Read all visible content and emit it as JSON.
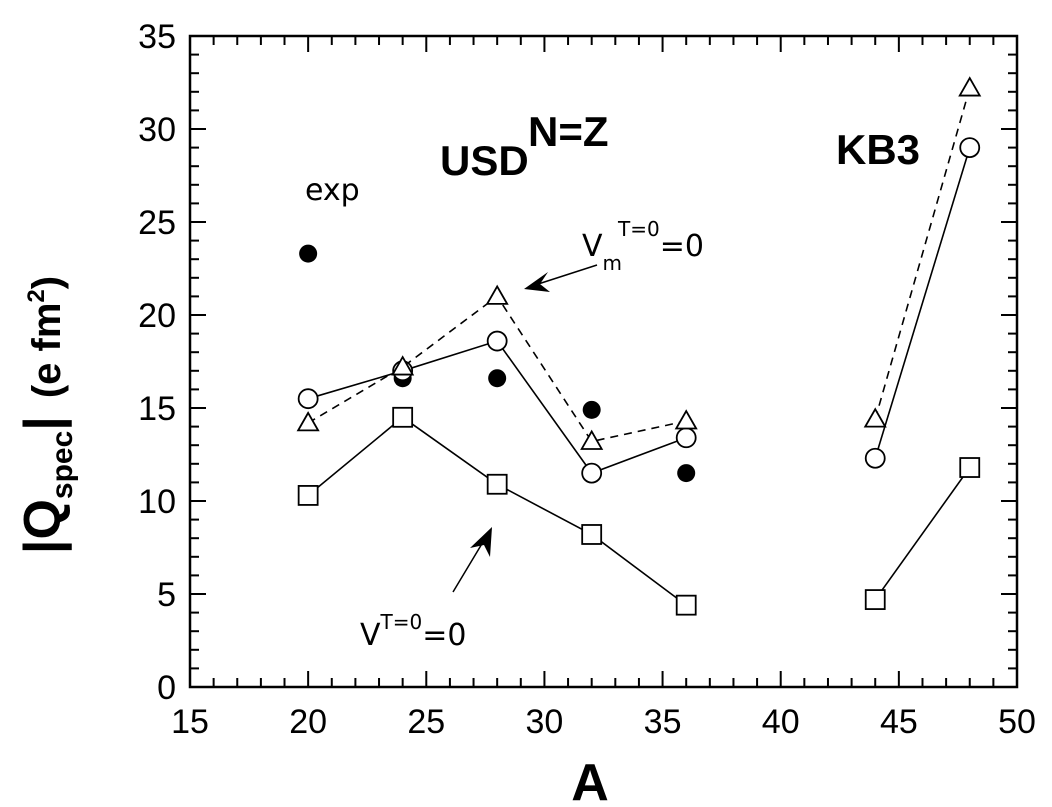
{
  "chart_data": {
    "type": "scatter",
    "xlabel": "A",
    "ylabel": "|Q_spec| (e fm²)",
    "ylabel_parts": {
      "bar_q": "|Q",
      "sub": "spec",
      "bar": "|",
      "unit_open": "(e  fm",
      "sup": "2",
      "unit_close": ")"
    },
    "xlim": [
      15,
      50
    ],
    "ylim": [
      0,
      35
    ],
    "xticks": [
      15,
      20,
      25,
      30,
      35,
      40,
      45,
      50
    ],
    "yticks": [
      0,
      5,
      10,
      15,
      20,
      25,
      30,
      35
    ],
    "grid": false,
    "series": [
      {
        "marker": "filled-circle",
        "line": "none",
        "points": [
          [
            20,
            23.3
          ],
          [
            24,
            16.6
          ],
          [
            28,
            16.6
          ],
          [
            32,
            14.9
          ],
          [
            36,
            11.5
          ]
        ]
      },
      {
        "marker": "open-circle",
        "line": "solid",
        "segments": [
          [
            [
              20,
              15.5
            ],
            [
              24,
              17.0
            ],
            [
              28,
              18.6
            ],
            [
              32,
              11.5
            ],
            [
              36,
              13.4
            ]
          ],
          [
            [
              44,
              12.3
            ],
            [
              48,
              29.0
            ]
          ]
        ]
      },
      {
        "marker": "open-triangle",
        "line": "dashed",
        "segments": [
          [
            [
              20,
              14.2
            ],
            [
              24,
              17.2
            ],
            [
              28,
              21.0
            ],
            [
              32,
              13.2
            ],
            [
              36,
              14.3
            ]
          ],
          [
            [
              44,
              14.4
            ],
            [
              48,
              32.2
            ]
          ]
        ]
      },
      {
        "marker": "open-square",
        "line": "solid",
        "segments": [
          [
            [
              20,
              10.3
            ],
            [
              24,
              14.5
            ],
            [
              28,
              10.9
            ],
            [
              32,
              8.2
            ],
            [
              36,
              4.4
            ]
          ],
          [
            [
              44,
              4.7
            ],
            [
              48,
              11.8
            ]
          ]
        ]
      }
    ],
    "annotations": {
      "nz": "N=Z",
      "usd": "USD",
      "kb3": "KB3",
      "exp": "exp",
      "vm_v": "V",
      "vm_sub": "m",
      "vm_sup": "T=0",
      "vm_eq": "=0",
      "v_v": "V",
      "v_sup": "T=0",
      "v_eq": "=0"
    }
  }
}
